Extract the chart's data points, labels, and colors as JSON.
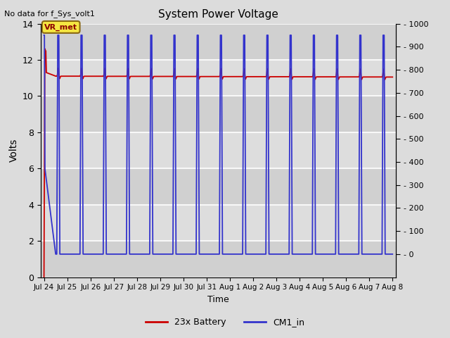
{
  "title": "System Power Voltage",
  "top_left_text": "No data for f_Sys_volt1",
  "annotation_text": "VR_met",
  "xlabel": "Time",
  "ylabel": "Volts",
  "background_color": "#dcdcdc",
  "plot_bg_color": "#dcdcdc",
  "ylim_left": [
    0,
    14
  ],
  "ylim_right": [
    -100,
    1000
  ],
  "yticks_left": [
    0,
    2,
    4,
    6,
    8,
    10,
    12,
    14
  ],
  "yticks_right": [
    0,
    100,
    200,
    300,
    400,
    500,
    600,
    700,
    800,
    900,
    1000
  ],
  "yticks_right_labels": [
    "- 0",
    "- 100",
    "- 200",
    "- 300",
    "- 400",
    "- 500",
    "- 600",
    "- 700",
    "- 800",
    "- 900",
    "- 1000"
  ],
  "grid_color": "#ffffff",
  "red_color": "#cc0000",
  "blue_color": "#3333cc",
  "legend_entries": [
    "23x Battery",
    "CM1_in"
  ],
  "tick_labels": [
    "Jul 24",
    "Jul 25",
    "Jul 26",
    "Jul 27",
    "Jul 28",
    "Jul 29",
    "Jul 30",
    "Jul 31",
    "Aug 1",
    "Aug 2",
    "Aug 3",
    "Aug 4",
    "Aug 5",
    "Aug 6",
    "Aug 7",
    "Aug 8"
  ],
  "total_days": 15.0
}
